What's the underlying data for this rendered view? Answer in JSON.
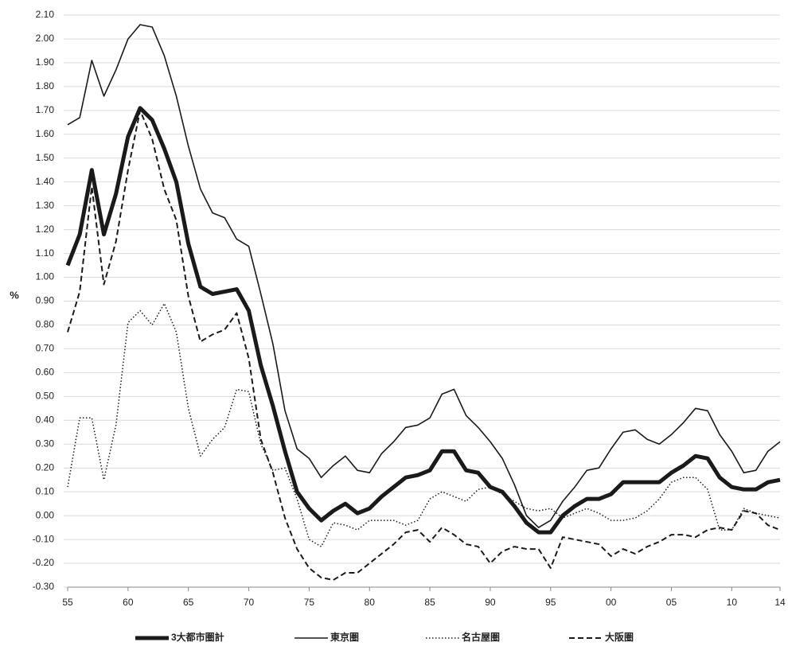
{
  "chart_data": {
    "type": "line",
    "y_label": "%",
    "categories": [
      "55",
      null,
      null,
      null,
      null,
      "60",
      null,
      null,
      null,
      null,
      "65",
      null,
      null,
      null,
      null,
      "70",
      null,
      null,
      null,
      null,
      "75",
      null,
      null,
      null,
      null,
      "80",
      null,
      null,
      null,
      null,
      "85",
      null,
      null,
      null,
      null,
      "90",
      null,
      null,
      null,
      null,
      "95",
      null,
      null,
      null,
      null,
      "00",
      null,
      null,
      null,
      null,
      "05",
      null,
      null,
      null,
      null,
      "10",
      null,
      null,
      null,
      "14"
    ],
    "series": [
      {
        "name": "3大都市圏計",
        "color": "#1a1a1a",
        "line_style": "thick",
        "values": [
          1.05,
          1.18,
          1.45,
          1.18,
          1.35,
          1.59,
          1.71,
          1.66,
          1.54,
          1.4,
          1.14,
          0.96,
          0.93,
          0.94,
          0.95,
          0.86,
          0.63,
          0.46,
          0.27,
          0.1,
          0.03,
          -0.02,
          0.02,
          0.05,
          0.01,
          0.03,
          0.08,
          0.12,
          0.16,
          0.17,
          0.19,
          0.27,
          0.27,
          0.19,
          0.18,
          0.12,
          0.1,
          0.04,
          -0.03,
          -0.07,
          -0.07,
          0.0,
          0.04,
          0.07,
          0.07,
          0.09,
          0.14,
          0.14,
          0.14,
          0.14,
          0.18,
          0.21,
          0.25,
          0.24,
          0.16,
          0.12,
          0.11,
          0.11,
          0.14,
          0.15
        ]
      },
      {
        "name": "東京圏",
        "color": "#1a1a1a",
        "line_style": "solid",
        "values": [
          1.64,
          1.67,
          1.91,
          1.76,
          1.87,
          2.0,
          2.06,
          2.05,
          1.93,
          1.76,
          1.55,
          1.37,
          1.27,
          1.25,
          1.16,
          1.13,
          0.93,
          0.72,
          0.44,
          0.28,
          0.24,
          0.16,
          0.21,
          0.25,
          0.19,
          0.18,
          0.26,
          0.31,
          0.37,
          0.38,
          0.41,
          0.51,
          0.53,
          0.42,
          0.37,
          0.31,
          0.24,
          0.13,
          0.0,
          -0.05,
          -0.02,
          0.06,
          0.12,
          0.19,
          0.2,
          0.28,
          0.35,
          0.36,
          0.32,
          0.3,
          0.34,
          0.39,
          0.45,
          0.44,
          0.34,
          0.27,
          0.18,
          0.19,
          0.27,
          0.31
        ]
      },
      {
        "name": "名古屋圏",
        "color": "#1a1a1a",
        "line_style": "dotted",
        "values": [
          0.12,
          0.41,
          0.41,
          0.15,
          0.38,
          0.81,
          0.86,
          0.8,
          0.89,
          0.77,
          0.45,
          0.25,
          0.32,
          0.37,
          0.53,
          0.52,
          0.3,
          0.19,
          0.2,
          0.07,
          -0.1,
          -0.13,
          -0.03,
          -0.04,
          -0.06,
          -0.02,
          -0.02,
          -0.02,
          -0.04,
          -0.02,
          0.07,
          0.1,
          0.08,
          0.06,
          0.11,
          0.12,
          0.09,
          0.06,
          0.03,
          0.02,
          0.03,
          -0.01,
          0.01,
          0.03,
          0.01,
          -0.02,
          -0.02,
          -0.01,
          0.02,
          0.07,
          0.14,
          0.16,
          0.16,
          0.11,
          -0.06,
          -0.06,
          0.03,
          0.01,
          0.0,
          -0.01
        ]
      },
      {
        "name": "大阪圏",
        "color": "#1a1a1a",
        "line_style": "dashed",
        "values": [
          0.77,
          0.94,
          1.38,
          0.97,
          1.15,
          1.45,
          1.7,
          1.58,
          1.37,
          1.24,
          0.92,
          0.73,
          0.76,
          0.78,
          0.85,
          0.66,
          0.32,
          0.18,
          -0.01,
          -0.14,
          -0.22,
          -0.26,
          -0.27,
          -0.24,
          -0.24,
          -0.2,
          -0.16,
          -0.12,
          -0.07,
          -0.06,
          -0.11,
          -0.05,
          -0.08,
          -0.12,
          -0.13,
          -0.2,
          -0.15,
          -0.13,
          -0.14,
          -0.14,
          -0.22,
          -0.09,
          -0.1,
          -0.11,
          -0.12,
          -0.17,
          -0.14,
          -0.16,
          -0.13,
          -0.11,
          -0.08,
          -0.08,
          -0.09,
          -0.06,
          -0.05,
          -0.06,
          0.02,
          0.01,
          -0.04,
          -0.06
        ]
      }
    ],
    "ylim": [
      -0.3,
      2.1
    ],
    "yticks": [
      {
        "value": -0.3,
        "label": "-0.30"
      },
      {
        "value": -0.2,
        "label": "-0.20"
      },
      {
        "value": -0.1,
        "label": "-0.10"
      },
      {
        "value": 0,
        "label": "0.00"
      },
      {
        "value": 0.1,
        "label": "0.10"
      },
      {
        "value": 0.2,
        "label": "0.20"
      },
      {
        "value": 0.3,
        "label": "0.30"
      },
      {
        "value": 0.4,
        "label": "0.40"
      },
      {
        "value": 0.5,
        "label": "0.50"
      },
      {
        "value": 0.6,
        "label": "0.60"
      },
      {
        "value": 0.7,
        "label": "0.70"
      },
      {
        "value": 0.8,
        "label": "0.80"
      },
      {
        "value": 0.9,
        "label": "0.90"
      },
      {
        "value": 1,
        "label": "1.00"
      },
      {
        "value": 1.1,
        "label": "1.10"
      },
      {
        "value": 1.2,
        "label": "1.20"
      },
      {
        "value": 1.3,
        "label": "1.30"
      },
      {
        "value": 1.4,
        "label": "1.40"
      },
      {
        "value": 1.5,
        "label": "1.50"
      },
      {
        "value": 1.6,
        "label": "1.60"
      },
      {
        "value": 1.7,
        "label": "1.70"
      },
      {
        "value": 1.8,
        "label": "1.80"
      },
      {
        "value": 1.9,
        "label": "1.90"
      },
      {
        "value": 2,
        "label": "2.00"
      },
      {
        "value": 2.1,
        "label": "2.10"
      }
    ],
    "grid": true,
    "legend": "bottom"
  }
}
